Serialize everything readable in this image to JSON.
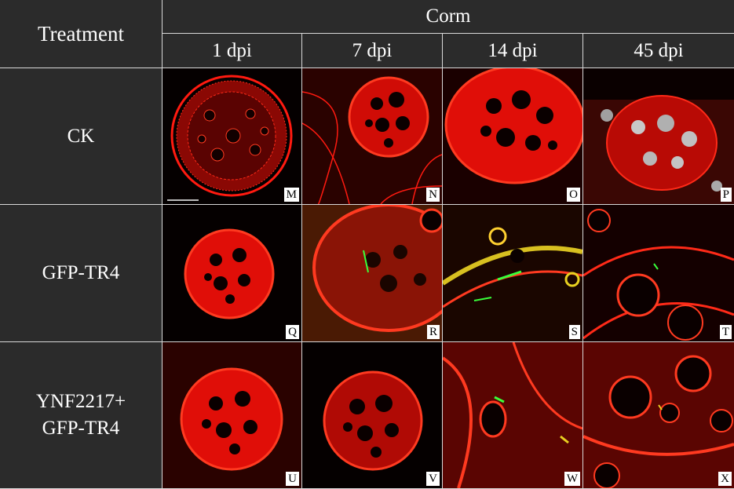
{
  "header": {
    "treatment_label": "Treatment",
    "group_label": "Corm",
    "timepoints": [
      "1 dpi",
      "7 dpi",
      "14 dpi",
      "45 dpi"
    ]
  },
  "rows": [
    {
      "label": "CK",
      "panels": [
        "M",
        "N",
        "O",
        "P"
      ]
    },
    {
      "label": "GFP-TR4",
      "panels": [
        "Q",
        "R",
        "S",
        "T"
      ]
    },
    {
      "label_line1": "YNF2217+",
      "label_line2": "GFP-TR4",
      "panels": [
        "U",
        "V",
        "W",
        "X"
      ]
    }
  ],
  "colors": {
    "cell_wall": "#ff1a10",
    "background": "#050000",
    "gfp": "#39ff3a",
    "header_bg": "#2b2b2b"
  }
}
